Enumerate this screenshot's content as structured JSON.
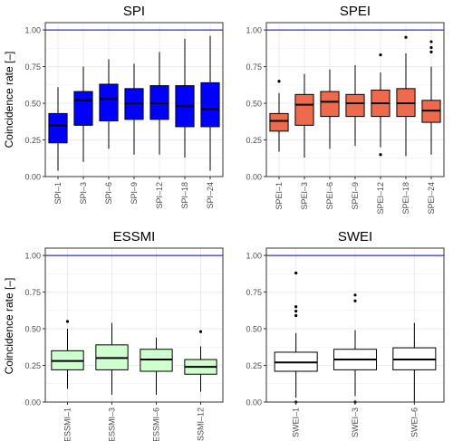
{
  "figure": {
    "ylabel": "Coincidence rate [–]"
  },
  "chart_data": [
    {
      "type": "box",
      "title": "SPI",
      "ylabel": "Coincidence rate [–]",
      "ylim": [
        0,
        1.05
      ],
      "yticks": [
        "0.00",
        "0.25",
        "0.50",
        "0.75",
        "1.00"
      ],
      "reference_line": 1.0,
      "fill": "#0000ff",
      "categories": [
        "SPI–1",
        "SPI–3",
        "SPI–6",
        "SPI–9",
        "SPI–12",
        "SPI–18",
        "SPI–24"
      ],
      "boxes": [
        {
          "lo": 0.04,
          "q1": 0.23,
          "med": 0.35,
          "q3": 0.43,
          "hi": 0.61,
          "outliers": []
        },
        {
          "lo": 0.1,
          "q1": 0.35,
          "med": 0.52,
          "q3": 0.58,
          "hi": 0.75,
          "outliers": []
        },
        {
          "lo": 0.19,
          "q1": 0.38,
          "med": 0.53,
          "q3": 0.63,
          "hi": 0.8,
          "outliers": []
        },
        {
          "lo": 0.15,
          "q1": 0.39,
          "med": 0.5,
          "q3": 0.6,
          "hi": 0.77,
          "outliers": []
        },
        {
          "lo": 0.15,
          "q1": 0.39,
          "med": 0.5,
          "q3": 0.62,
          "hi": 0.85,
          "outliers": []
        },
        {
          "lo": 0.13,
          "q1": 0.34,
          "med": 0.48,
          "q3": 0.62,
          "hi": 0.94,
          "outliers": []
        },
        {
          "lo": 0.04,
          "q1": 0.34,
          "med": 0.46,
          "q3": 0.64,
          "hi": 0.96,
          "outliers": []
        }
      ]
    },
    {
      "type": "box",
      "title": "SPEI",
      "ylim": [
        0,
        1.05
      ],
      "yticks": [
        "0.00",
        "0.25",
        "0.50",
        "0.75",
        "1.00"
      ],
      "reference_line": 1.0,
      "fill": "#ee6a4d",
      "categories": [
        "SPEI–1",
        "SPEI–3",
        "SPEI–6",
        "SPEI–9",
        "SPEI–12",
        "SPEI–18",
        "SPEI–24"
      ],
      "boxes": [
        {
          "lo": 0.17,
          "q1": 0.31,
          "med": 0.38,
          "q3": 0.43,
          "hi": 0.57,
          "outliers": [
            0.65
          ]
        },
        {
          "lo": 0.13,
          "q1": 0.35,
          "med": 0.49,
          "q3": 0.56,
          "hi": 0.7,
          "outliers": []
        },
        {
          "lo": 0.19,
          "q1": 0.41,
          "med": 0.51,
          "q3": 0.58,
          "hi": 0.73,
          "outliers": []
        },
        {
          "lo": 0.21,
          "q1": 0.41,
          "med": 0.5,
          "q3": 0.56,
          "hi": 0.76,
          "outliers": []
        },
        {
          "lo": 0.2,
          "q1": 0.41,
          "med": 0.5,
          "q3": 0.59,
          "hi": 0.71,
          "outliers": [
            0.83,
            0.15
          ]
        },
        {
          "lo": 0.14,
          "q1": 0.41,
          "med": 0.5,
          "q3": 0.6,
          "hi": 0.84,
          "outliers": [
            0.95
          ]
        },
        {
          "lo": 0.15,
          "q1": 0.37,
          "med": 0.45,
          "q3": 0.52,
          "hi": 0.75,
          "outliers": [
            0.85,
            0.88,
            0.92
          ]
        }
      ]
    },
    {
      "type": "box",
      "title": "ESSMI",
      "ylabel": "Coincidence rate [–]",
      "ylim": [
        0,
        1.05
      ],
      "yticks": [
        "0.00",
        "0.25",
        "0.50",
        "0.75",
        "1.00"
      ],
      "reference_line": 1.0,
      "fill": "#cfffcf",
      "categories": [
        "ESSMI–1",
        "ESSMI–3",
        "ESSMI–6",
        "ESSMI–12"
      ],
      "boxes": [
        {
          "lo": 0.09,
          "q1": 0.22,
          "med": 0.28,
          "q3": 0.35,
          "hi": 0.5,
          "outliers": [
            0.55
          ]
        },
        {
          "lo": 0.05,
          "q1": 0.22,
          "med": 0.3,
          "q3": 0.39,
          "hi": 0.54,
          "outliers": []
        },
        {
          "lo": 0.05,
          "q1": 0.21,
          "med": 0.29,
          "q3": 0.36,
          "hi": 0.44,
          "outliers": []
        },
        {
          "lo": 0.07,
          "q1": 0.19,
          "med": 0.24,
          "q3": 0.29,
          "hi": 0.38,
          "outliers": [
            0.48
          ]
        }
      ]
    },
    {
      "type": "box",
      "title": "SWEI",
      "ylim": [
        0,
        1.05
      ],
      "yticks": [
        "0.00",
        "0.25",
        "0.50",
        "0.75",
        "1.00"
      ],
      "reference_line": 1.0,
      "fill": "#ffffff",
      "categories": [
        "SWEI–1",
        "SWEI–3",
        "SWEI–6"
      ],
      "boxes": [
        {
          "lo": 0.03,
          "q1": 0.21,
          "med": 0.27,
          "q3": 0.34,
          "hi": 0.47,
          "outliers": [
            0.88,
            0.65,
            0.62,
            0.59,
            0.0
          ]
        },
        {
          "lo": 0.04,
          "q1": 0.22,
          "med": 0.29,
          "q3": 0.36,
          "hi": 0.49,
          "outliers": [
            0.73,
            0.69,
            0.0
          ]
        },
        {
          "lo": 0.0,
          "q1": 0.22,
          "med": 0.29,
          "q3": 0.37,
          "hi": 0.54,
          "outliers": []
        }
      ]
    }
  ],
  "colors": {
    "panel_bg": "#ffffff",
    "panel_border": "#333333",
    "grid": "#ebebeb",
    "reference_line": "#3333cc",
    "axis_text": "#4d4d4d",
    "box_stroke": "#000000"
  }
}
